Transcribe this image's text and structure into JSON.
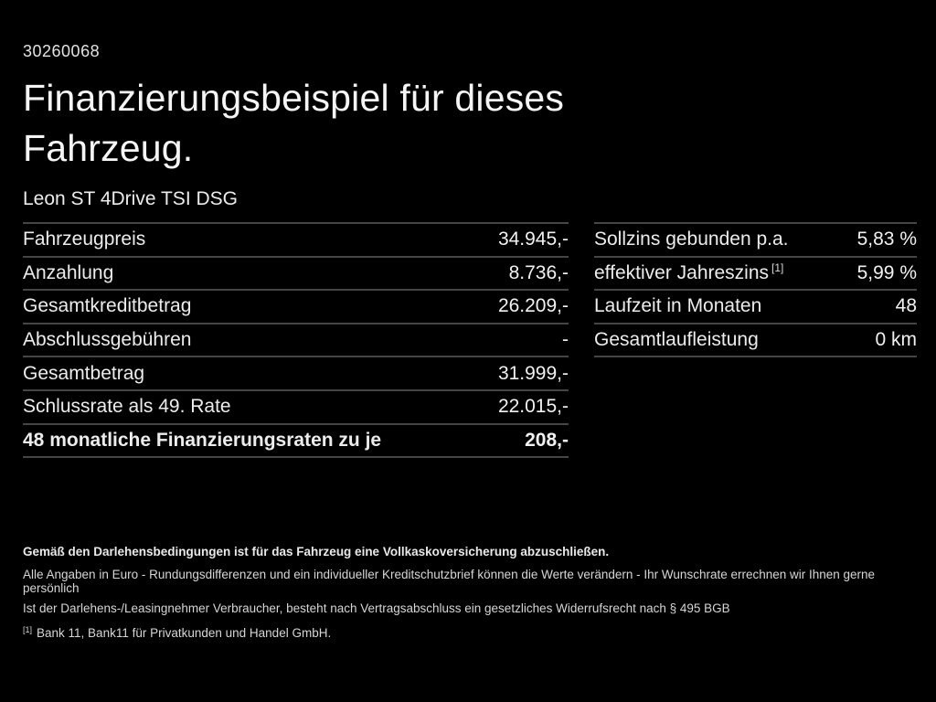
{
  "palette": {
    "background": "#000000",
    "text": "#efefef",
    "divider": "#454545"
  },
  "header": {
    "doc_number": "30260068",
    "title_line1": "Finanzierungsbeispiel für dieses",
    "title_line2": "Fahrzeug.",
    "vehicle_model": "Leon ST 4Drive TSI DSG"
  },
  "finance_table": {
    "rows": [
      {
        "label": "Fahrzeugpreis",
        "value": "34.945,-"
      },
      {
        "label": "Anzahlung",
        "value": "8.736,-"
      },
      {
        "label": "Gesamtkreditbetrag",
        "value": "26.209,-"
      },
      {
        "label": "Abschlussgebühren",
        "value": "-"
      },
      {
        "label": "Gesamtbetrag",
        "value": "31.999,-"
      },
      {
        "label": "Schlussrate als 49. Rate",
        "value": "22.015,-"
      },
      {
        "label": "48 monatliche Finanzierungsraten zu je",
        "value": "208,-"
      }
    ]
  },
  "conditions_table": {
    "rows": [
      {
        "label": "Sollzins gebunden p.a.",
        "value": "5,83 %"
      },
      {
        "label": "effektiver Jahreszins",
        "sup": "[1]",
        "value": "5,99 %"
      },
      {
        "label": "Laufzeit in Monaten",
        "value": "48"
      },
      {
        "label": "Gesamtlaufleistung",
        "value": "0 km"
      }
    ]
  },
  "footer": {
    "insurance_note": "Gemäß den Darlehensbedingungen ist für das Fahrzeug eine Vollkaskoversicherung abzuschließen.",
    "disclaimer_line1": "Alle Angaben in Euro - Rundungsdifferenzen und ein individueller Kreditschutzbrief können die Werte verändern - Ihr Wunschrate errechnen wir Ihnen gerne persönlich",
    "disclaimer_line2": "Ist der Darlehens-/Leasingnehmer Verbraucher, besteht nach Vertragsabschluss ein gesetzliches Widerrufsrecht nach § 495 BGB",
    "footnote_marker": "[1]",
    "footnote_text": "Bank 11, Bank11 für Privatkunden und Handel GmbH."
  }
}
